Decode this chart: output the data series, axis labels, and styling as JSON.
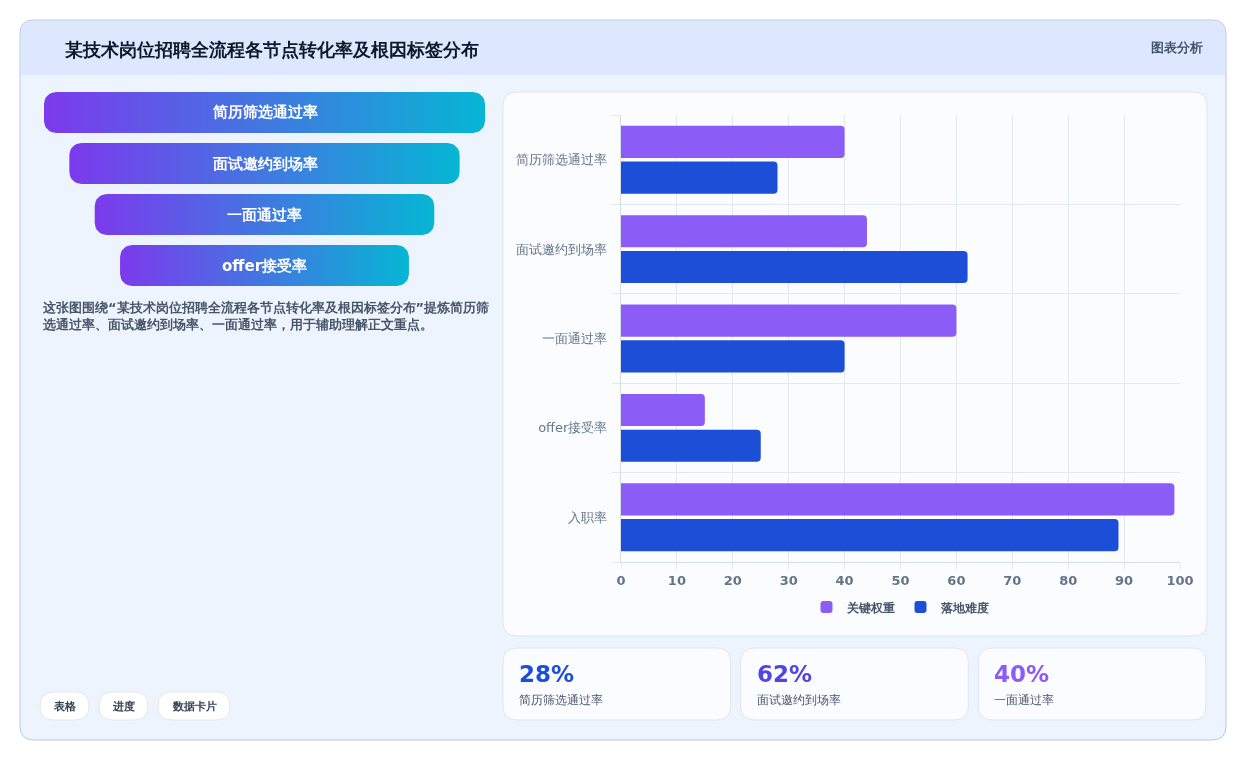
{
  "chart_data": [
    {
      "type": "other",
      "title": "某技术岗位招聘全流程各节点转化率及根因标签分布",
      "categories": [
        "简历筛选通过率",
        "面试邀约到场率",
        "一面通过率",
        "offer接受率"
      ],
      "annotations": [
        "图表分析",
        "这张图围绕“某技术岗位招聘全流程各节点转化率及根因标签分布”提炼简历筛选通过率、面试邀约到场率、一面通过率，用于辅助理解正文重点。",
        "表格",
        "进度",
        "数据卡片"
      ]
    },
    {
      "type": "bar",
      "orientation": "horizontal",
      "categories": [
        "简历筛选通过率",
        "面试邀约到场率",
        "一面通过率",
        "offer接受率",
        "入职率"
      ],
      "series": [
        {
          "name": "关键权重",
          "color": "#8b5cf6",
          "values": [
            40,
            44,
            60,
            15,
            99
          ]
        },
        {
          "name": "落地难度",
          "color": "#1d4ed8",
          "values": [
            28,
            62,
            40,
            25,
            89
          ]
        }
      ],
      "xlim": [
        0,
        100
      ],
      "xticks": [
        0,
        10,
        20,
        30,
        40,
        50,
        60,
        70,
        80,
        90,
        100
      ],
      "grid": true,
      "legend": "bottom"
    },
    {
      "type": "other",
      "annotations": [
        "28%",
        "简历筛选通过率",
        "62%",
        "面试邀约到场率",
        "40%",
        "一面通过率"
      ]
    }
  ]
}
